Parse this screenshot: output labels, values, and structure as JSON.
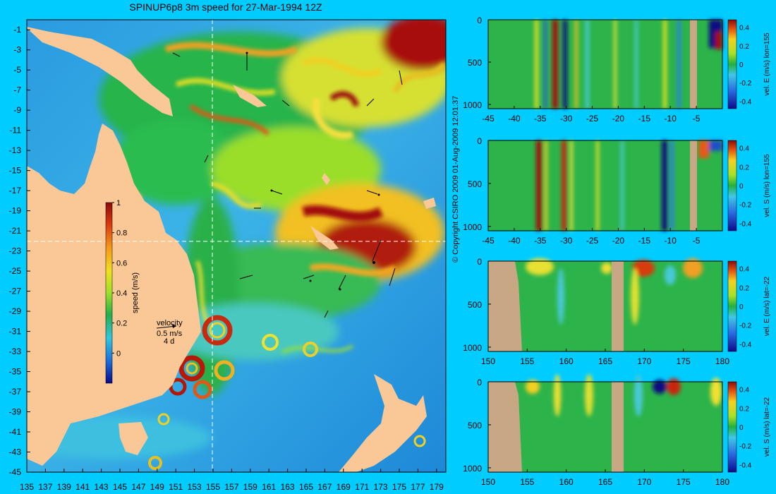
{
  "title": "SPINUP6p8 3m speed for 27-Mar-1994 12Z",
  "copyright": "© Copyright CSIRO 2009   01-Aug-2009 12:01:37",
  "colors": {
    "background": "#00ccff",
    "land": "#f9c896",
    "section_land": "#c8a884"
  },
  "map": {
    "lon_ticks": [
      "135",
      "137",
      "139",
      "141",
      "143",
      "145",
      "147",
      "149",
      "151",
      "153",
      "155",
      "157",
      "159",
      "161",
      "163",
      "165",
      "167",
      "169",
      "171",
      "173",
      "175",
      "177",
      "179"
    ],
    "lat_ticks": [
      "-1",
      "-3",
      "-5",
      "-7",
      "-9",
      "-11",
      "-13",
      "-15",
      "-17",
      "-19",
      "-21",
      "-23",
      "-25",
      "-27",
      "-29",
      "-31",
      "-33",
      "-35",
      "-37",
      "-39",
      "-41",
      "-43",
      "-45"
    ],
    "colorbar_label": "speed (m/s)",
    "colorbar_ticks": [
      "1",
      "0.8",
      "0.6",
      "0.4",
      "0.2",
      "0"
    ],
    "velocity_legend": {
      "label": "velocity",
      "speed": "0.5 m/s",
      "time": "4 d"
    }
  },
  "chart_data": [
    {
      "type": "heatmap",
      "title": "SPINUP6p8 3m speed for 27-Mar-1994 12Z",
      "x_label": "",
      "y_label": "",
      "xlim": [
        135,
        180
      ],
      "ylim": [
        -45,
        0
      ],
      "colorbar": {
        "label": "speed (m/s)",
        "range": [
          -0.2,
          1.0
        ]
      },
      "section_lines": {
        "lon": 155,
        "lat": -22
      }
    },
    {
      "type": "heatmap",
      "section": "lon=155",
      "colorbar_label": "vel. E (m/s) lon=155",
      "x_ticks": [
        "-45",
        "-40",
        "-35",
        "-30",
        "-25",
        "-20",
        "-15",
        "-10",
        "-5"
      ],
      "y_ticks": [
        "0",
        "500",
        "1000"
      ],
      "cbar_ticks": [
        "0.4",
        "0.2",
        "0",
        "-0.2",
        "-0.4"
      ],
      "xlim": [
        -45,
        0
      ],
      "ylim": [
        1050,
        0
      ]
    },
    {
      "type": "heatmap",
      "section": "lon=155",
      "colorbar_label": "vel. S (m/s) lon=155",
      "x_ticks": [
        "-45",
        "-40",
        "-35",
        "-30",
        "-25",
        "-20",
        "-15",
        "-10",
        "-5"
      ],
      "y_ticks": [
        "0",
        "500",
        "1000"
      ],
      "cbar_ticks": [
        "0.4",
        "0.2",
        "0",
        "-0.2",
        "-0.4"
      ],
      "xlim": [
        -45,
        0
      ],
      "ylim": [
        1050,
        0
      ]
    },
    {
      "type": "heatmap",
      "section": "lat=-22",
      "colorbar_label": "vel. E (m/s) lat=-22",
      "x_ticks": [
        "150",
        "155",
        "160",
        "165",
        "170",
        "175",
        "180"
      ],
      "y_ticks": [
        "0",
        "500",
        "1000"
      ],
      "cbar_ticks": [
        "0.4",
        "0.2",
        "0",
        "-0.2",
        "-0.4"
      ],
      "xlim": [
        150,
        180
      ],
      "ylim": [
        1050,
        0
      ]
    },
    {
      "type": "heatmap",
      "section": "lat=-22",
      "colorbar_label": "vel. S (m/s) lat=-22",
      "x_ticks": [
        "150",
        "155",
        "160",
        "165",
        "170",
        "175",
        "180"
      ],
      "y_ticks": [
        "0",
        "500",
        "1000"
      ],
      "cbar_ticks": [
        "0.4",
        "0.2",
        "0",
        "-0.2",
        "-0.4"
      ],
      "xlim": [
        150,
        180
      ],
      "ylim": [
        1050,
        0
      ]
    }
  ]
}
